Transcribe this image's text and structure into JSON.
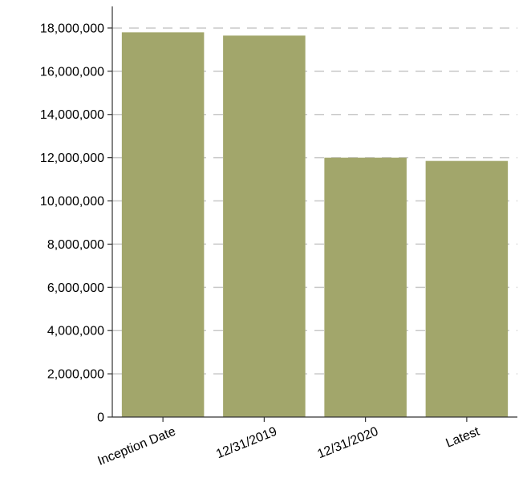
{
  "chart_data": {
    "type": "bar",
    "categories": [
      "Inception Date",
      "12/31/2019",
      "12/31/2020",
      "Latest"
    ],
    "values": [
      17800000,
      17650000,
      12000000,
      11850000
    ],
    "ylim": [
      0,
      19000000
    ],
    "yticks": [
      0,
      2000000,
      4000000,
      6000000,
      8000000,
      10000000,
      12000000,
      14000000,
      16000000,
      18000000
    ],
    "ytick_labels": [
      "0",
      "2,000,000",
      "4,000,000",
      "6,000,000",
      "8,000,000",
      "10,000,000",
      "12,000,000",
      "14,000,000",
      "16,000,000",
      "18,000,000"
    ],
    "title": "",
    "xlabel": "",
    "ylabel": "",
    "bar_color": "#a2a66b",
    "grid": true,
    "grid_style": "dashed horizontal",
    "legend": "none"
  }
}
